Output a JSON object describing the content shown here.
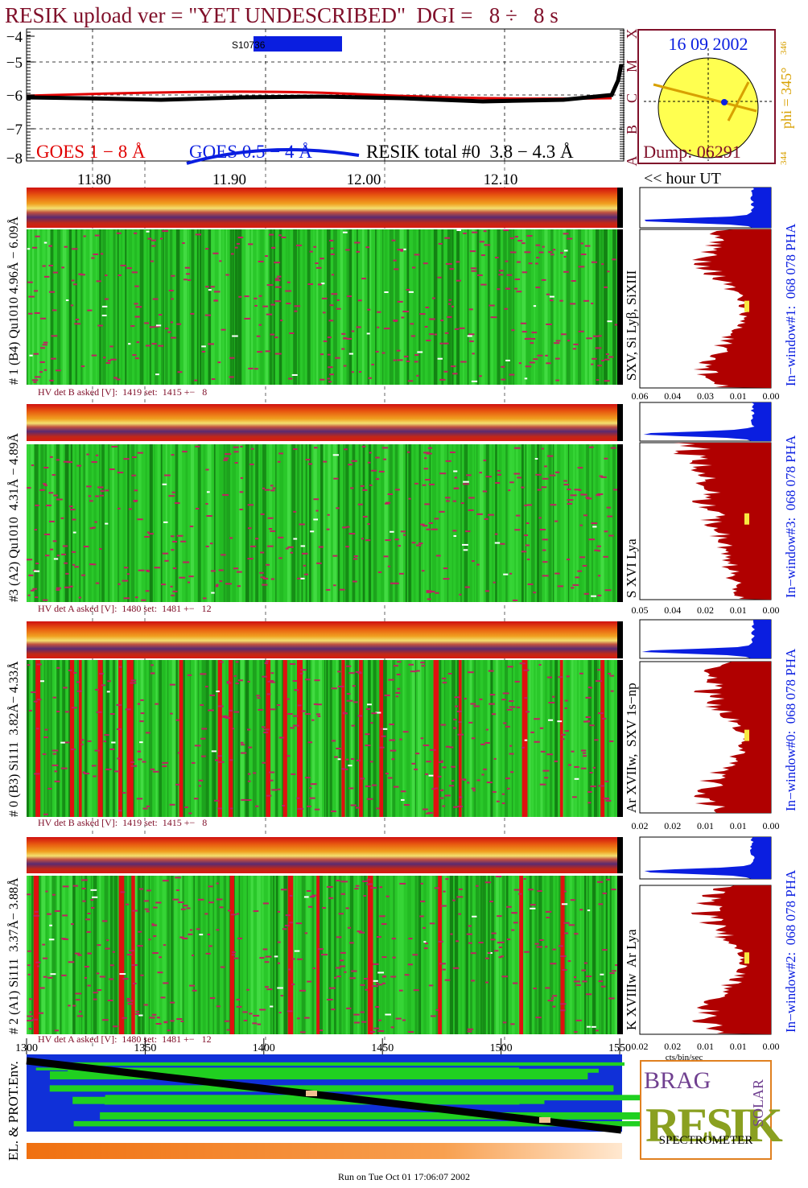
{
  "header": {
    "title": "RESIK upload ver = \"YET UNDESCRIBED\"  DGI =   8 ÷   8 s"
  },
  "goes_panel": {
    "yticks": [
      "−4",
      "−5",
      "−6",
      "−7",
      "−8"
    ],
    "classes": [
      "X",
      "M",
      "C",
      "B",
      "A"
    ],
    "marker": "S10736",
    "legend": [
      "GOES 1 − 8 Å",
      "GOES 0.5 − 4 Å",
      "RESIK total #0  3.8 − 4.3 Å"
    ],
    "xticks": [
      "11.80",
      "11.90",
      "12.00",
      "12.10"
    ],
    "x_unit": "<< hour UT"
  },
  "sun_panel": {
    "date": "16 09 2002",
    "dump": "Dump: 06291",
    "phi": "phi = 345°",
    "phi_max": "346",
    "phi_min": "344"
  },
  "spectra": [
    {
      "label": "# 1 (B4) Qu1010 4.96Å − 6.09Å",
      "lines": "SXV, Si Lyβ, SiXIII",
      "hv": "HV det B asked [V]:  1419 set:  1415 +−   8",
      "pha_label": "In−window#1:  068 078 PHA",
      "pha_ticks": [
        "0.06",
        "0.04",
        "0.03",
        "0.01",
        "0.00"
      ]
    },
    {
      "label": "#3 (A2) Qu1010  4.31Å − 4.89Å",
      "lines": "S XVI Lya",
      "hv": "HV det A asked [V]:  1480 set:  1481 +−   12",
      "pha_label": "In−window#3:  068 078 PHA",
      "pha_ticks": [
        "0.05",
        "0.04",
        "0.02",
        "0.01",
        "0.00"
      ]
    },
    {
      "label": "# 0 (B3) Si111  3.82Å− 4.33Å",
      "lines": "Ar XVIIw,  SXV 1s−np",
      "hv": "HV det B asked [V]:  1419 set:  1415 +−   8",
      "pha_label": "In−window#0:  068 078 PHA",
      "pha_ticks": [
        "0.02",
        "0.02",
        "0.01",
        "0.01",
        "0.00"
      ]
    },
    {
      "label": "# 2 (A1) Si111  3.37Å− 3.88Å",
      "lines": "K XVIIIw  Ar Lya",
      "hv": "HV det A asked [V]:  1480 set:  1481 +−   12",
      "pha_label": "In−window#2:  068 078 PHA",
      "pha_ticks": [
        "0.02",
        "0.02",
        "0.01",
        "0.01",
        "0.00"
      ]
    }
  ],
  "pha_unit": "cts/bin/sec",
  "env_panel": {
    "label": "EL. & PROT.Env.",
    "xticks": [
      "1300",
      "1350",
      "1400",
      "1450",
      "1500",
      "1550"
    ]
  },
  "logo": {
    "top": "BRAG",
    "main": "RESIK",
    "side": "SOLAR",
    "bottom": "SPECTROMETER"
  },
  "footer": "Run on Tue Oct 01 17:06:07 2002"
}
